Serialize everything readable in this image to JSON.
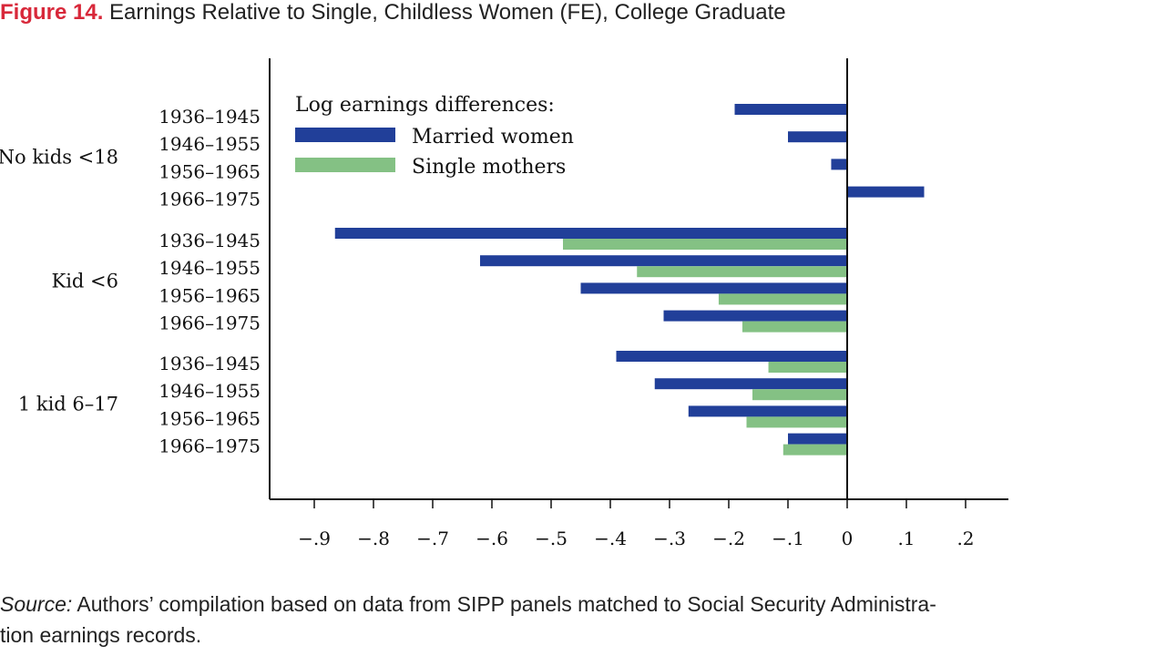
{
  "figure": {
    "number": "Figure 14.",
    "title": "Earnings Relative to Single, Childless Women (FE), College Graduate"
  },
  "source": {
    "label": "Source:",
    "line1": " Authors’ compilation based on data from SIPP panels matched to Social Security Administra-",
    "line2": "tion earnings records."
  },
  "chart_data": {
    "type": "bar",
    "orientation": "horizontal",
    "xlim": [
      -0.97,
      0.27
    ],
    "x_ticks": [
      -0.9,
      -0.8,
      -0.7,
      -0.6,
      -0.5,
      -0.4,
      -0.3,
      -0.2,
      -0.1,
      0,
      0.1,
      0.2
    ],
    "x_tick_labels": [
      "−.9",
      "−.8",
      "−.7",
      "−.6",
      "−.5",
      "−.4",
      "−.3",
      "−.2",
      "−.1",
      "0",
      ".1",
      ".2"
    ],
    "legend": {
      "title": "Log earnings differences:",
      "placement": "top-left"
    },
    "series": [
      {
        "name": "Married women",
        "color": "#213f99"
      },
      {
        "name": "Single mothers",
        "color": "#84c184"
      }
    ],
    "groups": [
      {
        "label": "No kids <18",
        "categories": [
          "1936–1945",
          "1946–1955",
          "1956–1965",
          "1966–1975"
        ],
        "married_women": [
          -0.19,
          -0.1,
          -0.027,
          0.13
        ],
        "single_mothers": [
          null,
          null,
          null,
          null
        ]
      },
      {
        "label": "Kid <6",
        "categories": [
          "1936–1945",
          "1946–1955",
          "1956–1965",
          "1966–1975"
        ],
        "married_women": [
          -0.865,
          -0.62,
          -0.45,
          -0.31
        ],
        "single_mothers": [
          -0.48,
          -0.355,
          -0.217,
          -0.177
        ]
      },
      {
        "label": "1 kid 6–17",
        "categories": [
          "1936–1945",
          "1946–1955",
          "1956–1965",
          "1966–1975"
        ],
        "married_women": [
          -0.39,
          -0.325,
          -0.268,
          -0.1
        ],
        "single_mothers": [
          -0.133,
          -0.16,
          -0.17,
          -0.108
        ]
      }
    ]
  }
}
